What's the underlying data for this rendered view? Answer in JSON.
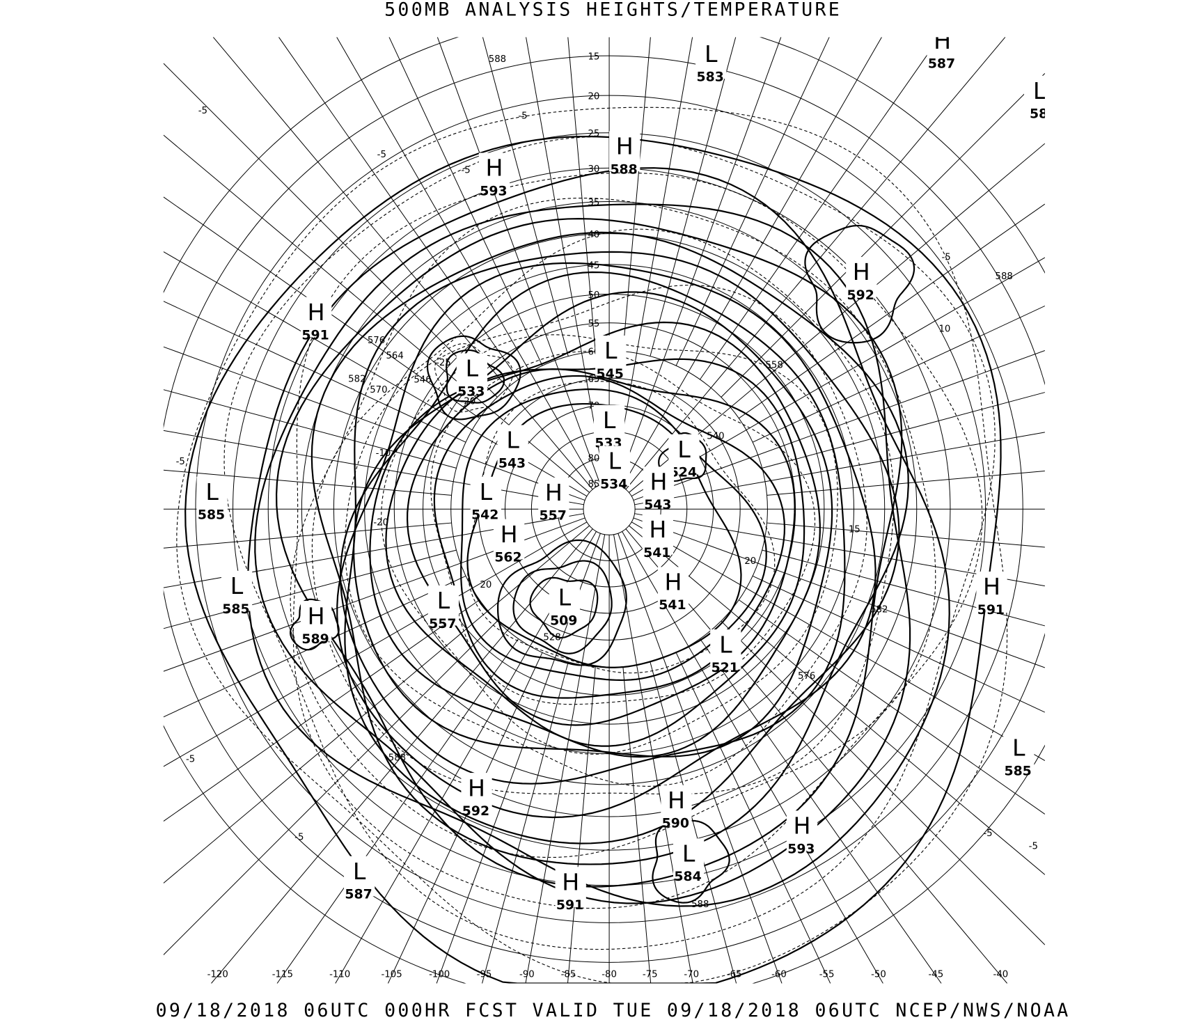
{
  "title": "500MB ANALYSIS  HEIGHTS/TEMPERATURE",
  "footer": "09/18/2018 06UTC 000HR FCST VALID TUE 09/18/2018 06UTC  NCEP/NWS/NOAA",
  "projection": "polar stereographic",
  "latitude_labels": [
    "15",
    "20",
    "25",
    "30",
    "35",
    "40",
    "45",
    "50",
    "55",
    "60",
    "65",
    "70",
    "80",
    "85"
  ],
  "longitude_labels": [
    "-120",
    "-115",
    "-110",
    "-105",
    "-100",
    "-95",
    "-90",
    "-85",
    "-80",
    "-75",
    "-70",
    "-65",
    "-60",
    "-55",
    "-50",
    "-45",
    "-40"
  ],
  "centers": [
    {
      "type": "L",
      "value": "583"
    },
    {
      "type": "H",
      "value": "587"
    },
    {
      "type": "L",
      "value": "58"
    },
    {
      "type": "H",
      "value": "593"
    },
    {
      "type": "H",
      "value": "588"
    },
    {
      "type": "H",
      "value": "592"
    },
    {
      "type": "H",
      "value": "591"
    },
    {
      "type": "L",
      "value": "533"
    },
    {
      "type": "L",
      "value": "545"
    },
    {
      "type": "L",
      "value": "533"
    },
    {
      "type": "L",
      "value": "543"
    },
    {
      "type": "L",
      "value": "524"
    },
    {
      "type": "L",
      "value": "534"
    },
    {
      "type": "H",
      "value": "543"
    },
    {
      "type": "L",
      "value": "585"
    },
    {
      "type": "L",
      "value": "542"
    },
    {
      "type": "H",
      "value": "557"
    },
    {
      "type": "H",
      "value": "541"
    },
    {
      "type": "H",
      "value": "562"
    },
    {
      "type": "H",
      "value": "541"
    },
    {
      "type": "L",
      "value": "585"
    },
    {
      "type": "H",
      "value": "591"
    },
    {
      "type": "L",
      "value": "557"
    },
    {
      "type": "L",
      "value": "509"
    },
    {
      "type": "H",
      "value": "589"
    },
    {
      "type": "L",
      "value": "521"
    },
    {
      "type": "L",
      "value": "585"
    },
    {
      "type": "H",
      "value": "592"
    },
    {
      "type": "H",
      "value": "590"
    },
    {
      "type": "H",
      "value": "593"
    },
    {
      "type": "L",
      "value": "584"
    },
    {
      "type": "L",
      "value": "587"
    },
    {
      "type": "H",
      "value": "591"
    }
  ],
  "contour_labels": [
    "588",
    "588",
    "588",
    "588",
    "576",
    "582",
    "558",
    "576",
    "564",
    "582",
    "570",
    "546",
    "540",
    "528"
  ],
  "temperature_labels": [
    "-5",
    "-5",
    "-5",
    "-5",
    "-5",
    "-5",
    "-5",
    "-5",
    "-5",
    "-5",
    "10",
    "-10",
    "-20",
    "-20",
    "20",
    "20",
    "-25",
    "15"
  ]
}
